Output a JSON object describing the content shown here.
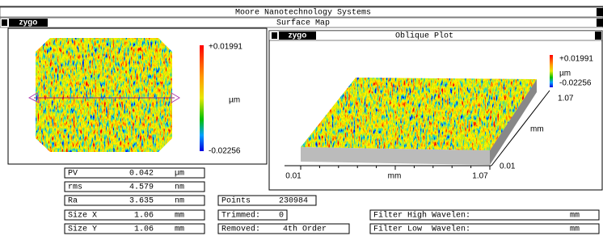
{
  "window_title": "Moore Nanotechnology Systems",
  "surface_map": {
    "logo": "zygo",
    "title": "Surface Map",
    "scale_max": "+0.01991",
    "scale_unit": "µm",
    "scale_min": "-0.02256"
  },
  "oblique_plot": {
    "logo": "zygo",
    "title": "Oblique Plot",
    "scale_max": "+0.01991",
    "scale_unit": "µm",
    "scale_min": "-0.02256",
    "y_axis": {
      "max": "1.07",
      "label": "mm",
      "min": "0.01"
    },
    "x_axis": {
      "min": "0.01",
      "label": "mm",
      "max": "1.07"
    }
  },
  "stats": [
    {
      "label": "PV",
      "value": "0.042",
      "unit": "µm"
    },
    {
      "label": "rms",
      "value": "4.579",
      "unit": "nm"
    },
    {
      "label": "Ra",
      "value": "3.635",
      "unit": "nm"
    },
    {
      "label": "Size X",
      "value": "1.06",
      "unit": "mm"
    },
    {
      "label": "Size Y",
      "value": "1.06",
      "unit": "mm"
    }
  ],
  "points": {
    "label": "Points",
    "value": "230984"
  },
  "trimmed": {
    "label": "Trimmed:",
    "value": "0"
  },
  "removed": {
    "label": "Removed:",
    "value": "4th Order"
  },
  "filters": [
    {
      "label": "Filter High Wavelen:",
      "unit": "mm"
    },
    {
      "label": "Filter Low  Wavelen:",
      "unit": "mm"
    }
  ]
}
